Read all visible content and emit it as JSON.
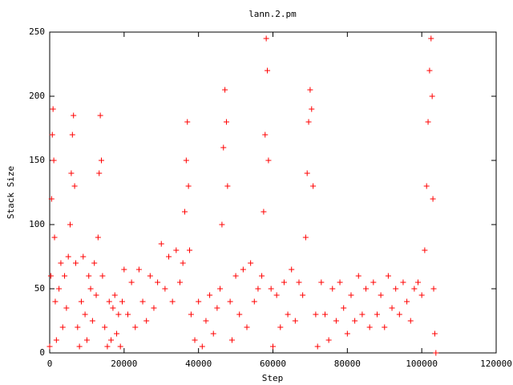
{
  "chart_data": {
    "type": "scatter",
    "title": "lann.2.pm",
    "x_label": "Step",
    "y_label": "Stack Size",
    "color": "#ff0000",
    "marker": "+",
    "xlim": [
      0,
      120000
    ],
    "xticks": [
      0,
      20000,
      40000,
      60000,
      80000,
      100000,
      120000
    ],
    "ylim": [
      0,
      250
    ],
    "yticks": [
      0,
      50,
      100,
      150,
      200,
      250
    ],
    "x": [
      0,
      300,
      500,
      700,
      900,
      1100,
      1300,
      1500,
      1800,
      2500,
      3000,
      3500,
      4000,
      4500,
      5000,
      5500,
      5800,
      6100,
      6400,
      6700,
      7000,
      7500,
      8000,
      8500,
      9000,
      9500,
      10000,
      10500,
      11000,
      11500,
      12000,
      12500,
      13000,
      13300,
      13600,
      13900,
      14200,
      14800,
      15500,
      16000,
      16500,
      17000,
      17500,
      18000,
      18500,
      19000,
      19500,
      20000,
      21000,
      22000,
      23000,
      24000,
      25000,
      26000,
      27000,
      28000,
      29000,
      30000,
      31000,
      32000,
      33000,
      34000,
      35000,
      35800,
      36300,
      36700,
      37000,
      37300,
      37600,
      38000,
      39000,
      40000,
      41000,
      42000,
      43000,
      44000,
      45000,
      45800,
      46300,
      46700,
      47100,
      47500,
      47800,
      48500,
      49000,
      50000,
      51000,
      52000,
      53000,
      54000,
      55000,
      56000,
      57000,
      57500,
      57900,
      58200,
      58500,
      58800,
      59500,
      60000,
      61000,
      62000,
      63000,
      64000,
      65000,
      66000,
      67000,
      68000,
      68800,
      69200,
      69600,
      70000,
      70400,
      70800,
      71500,
      72000,
      73000,
      74000,
      75000,
      76000,
      77000,
      78000,
      79000,
      80000,
      81000,
      82000,
      83000,
      84000,
      85000,
      86000,
      87000,
      88000,
      89000,
      90000,
      91000,
      92000,
      93000,
      94000,
      95000,
      96000,
      97000,
      98000,
      99000,
      100000,
      100800,
      101300,
      101700,
      102100,
      102500,
      102800,
      103000,
      103200,
      103500,
      103800
    ],
    "values": [
      5,
      60,
      120,
      170,
      190,
      150,
      90,
      40,
      10,
      50,
      70,
      20,
      60,
      35,
      75,
      100,
      140,
      170,
      185,
      130,
      70,
      20,
      5,
      40,
      75,
      30,
      10,
      60,
      50,
      25,
      70,
      45,
      90,
      140,
      185,
      150,
      60,
      20,
      5,
      40,
      10,
      35,
      45,
      15,
      30,
      5,
      40,
      65,
      30,
      55,
      20,
      65,
      40,
      25,
      60,
      35,
      55,
      85,
      50,
      75,
      40,
      80,
      55,
      70,
      110,
      150,
      180,
      130,
      80,
      30,
      10,
      40,
      5,
      25,
      45,
      15,
      35,
      50,
      100,
      160,
      205,
      180,
      130,
      40,
      10,
      60,
      30,
      65,
      20,
      70,
      40,
      50,
      60,
      110,
      170,
      245,
      220,
      150,
      50,
      5,
      45,
      20,
      55,
      30,
      65,
      25,
      55,
      45,
      90,
      140,
      180,
      205,
      190,
      130,
      30,
      5,
      55,
      30,
      10,
      50,
      25,
      55,
      35,
      15,
      45,
      25,
      60,
      30,
      50,
      20,
      55,
      30,
      45,
      20,
      60,
      35,
      50,
      30,
      55,
      40,
      25,
      50,
      55,
      45,
      80,
      130,
      180,
      220,
      245,
      200,
      120,
      50,
      15,
      0
    ]
  }
}
